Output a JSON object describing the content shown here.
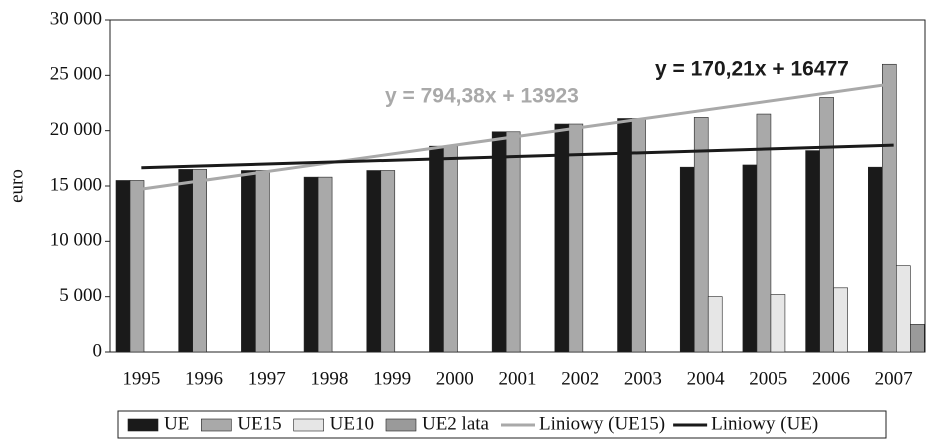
{
  "chart_data": {
    "type": "bar",
    "y_label": "euro",
    "categories": [
      "1995",
      "1996",
      "1997",
      "1998",
      "1999",
      "2000",
      "2001",
      "2002",
      "2003",
      "2004",
      "2005",
      "2006",
      "2007"
    ],
    "series": [
      {
        "name": "UE",
        "color": "#1a1a1a",
        "values": [
          15500,
          16500,
          16400,
          15800,
          16400,
          18600,
          19900,
          20600,
          21100,
          16700,
          16900,
          18200,
          16700
        ]
      },
      {
        "name": "UE15",
        "color": "#a9a9a9",
        "values": [
          15500,
          16500,
          16400,
          15800,
          16400,
          18600,
          19900,
          20600,
          21100,
          21200,
          21500,
          23000,
          26000
        ]
      },
      {
        "name": "UE10",
        "color": "#e6e6e6",
        "values": [
          null,
          null,
          null,
          null,
          null,
          null,
          null,
          null,
          null,
          5000,
          5200,
          5800,
          7800
        ]
      },
      {
        "name": "UE2 lata",
        "color": "#9a9a9a",
        "values": [
          null,
          null,
          null,
          null,
          null,
          null,
          null,
          null,
          null,
          null,
          null,
          null,
          2500
        ]
      }
    ],
    "trendlines": [
      {
        "name": "Liniowy (UE15)",
        "color": "#a9a9a9",
        "label": "y = 794,38x + 13923",
        "slope": 794.38,
        "intercept": 13923
      },
      {
        "name": "Liniowy (UE)",
        "color": "#1a1a1a",
        "label": "y = 170,21x + 16477",
        "slope": 170.21,
        "intercept": 16477
      }
    ],
    "ylim": [
      0,
      30000
    ],
    "yticks": [
      0,
      {
        "value": 5000,
        "label": "5 000"
      },
      {
        "value": 10000,
        "label": "10 000"
      },
      {
        "value": 15000,
        "label": "15 000"
      },
      {
        "value": 20000,
        "label": "20 000"
      },
      {
        "value": 25000,
        "label": "25 000"
      },
      {
        "value": 30000,
        "label": "30 000"
      }
    ],
    "legend": "bottom"
  }
}
